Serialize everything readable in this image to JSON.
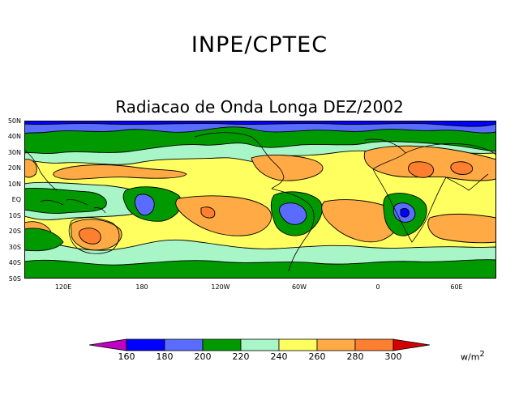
{
  "header": {
    "institution": "INPE/CPTEC",
    "map_title": "Radiacao de Onda Longa DEZ/2002"
  },
  "map": {
    "latitude_labels": [
      "50N",
      "40N",
      "30N",
      "20N",
      "10N",
      "EQ",
      "10S",
      "20S",
      "30S",
      "40S",
      "50S"
    ],
    "longitude_labels": [
      "120E",
      "180",
      "120W",
      "60W",
      "0",
      "60E"
    ]
  },
  "colorbar": {
    "ticks": [
      "160",
      "180",
      "200",
      "220",
      "240",
      "260",
      "280",
      "300"
    ],
    "unit_base": "w/m",
    "unit_exp": "2",
    "colors": [
      "#c000c0",
      "#0000ff",
      "#5a6cff",
      "#009a00",
      "#a8f5c8",
      "#ffff60",
      "#ffaa44",
      "#ff7f30",
      "#d40000"
    ]
  }
}
